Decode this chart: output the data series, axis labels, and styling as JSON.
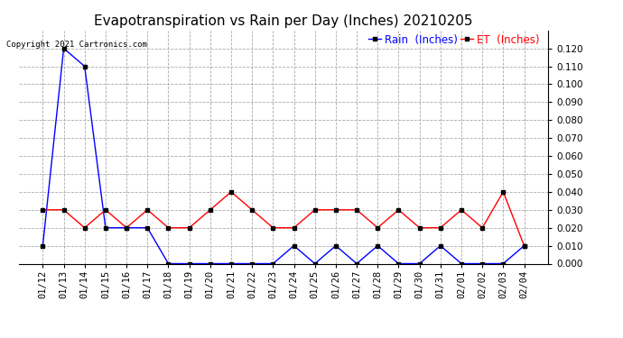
{
  "title": "Evapotranspiration vs Rain per Day (Inches) 20210205",
  "copyright_text": "Copyright 2021 Cartronics.com",
  "legend_rain": "Rain  (Inches)",
  "legend_et": "ET  (Inches)",
  "dates": [
    "01/12",
    "01/13",
    "01/14",
    "01/15",
    "01/16",
    "01/17",
    "01/18",
    "01/19",
    "01/20",
    "01/21",
    "01/22",
    "01/23",
    "01/24",
    "01/25",
    "01/26",
    "01/27",
    "01/28",
    "01/29",
    "01/30",
    "01/31",
    "02/01",
    "02/02",
    "02/03",
    "02/04"
  ],
  "rain": [
    0.01,
    0.12,
    0.11,
    0.02,
    0.02,
    0.02,
    0.0,
    0.0,
    0.0,
    0.0,
    0.0,
    0.0,
    0.01,
    0.0,
    0.01,
    0.0,
    0.01,
    0.0,
    0.0,
    0.01,
    0.0,
    0.0,
    0.0,
    0.01
  ],
  "et": [
    0.03,
    0.03,
    0.02,
    0.03,
    0.02,
    0.03,
    0.02,
    0.02,
    0.03,
    0.04,
    0.03,
    0.02,
    0.02,
    0.03,
    0.03,
    0.03,
    0.02,
    0.03,
    0.02,
    0.02,
    0.03,
    0.02,
    0.04,
    0.01
  ],
  "rain_color": "#0000FF",
  "et_color": "#FF0000",
  "ylim_min": 0.0,
  "ylim_max": 0.13,
  "yticks": [
    0.0,
    0.01,
    0.02,
    0.03,
    0.04,
    0.05,
    0.06,
    0.07,
    0.08,
    0.09,
    0.1,
    0.11,
    0.12
  ],
  "bg_color": "#FFFFFF",
  "grid_color": "#AAAAAA",
  "title_fontsize": 11,
  "tick_fontsize": 7.5,
  "legend_fontsize": 8.5,
  "marker_color": "#000000",
  "marker_size": 3,
  "line_width": 1.0,
  "figwidth": 6.9,
  "figheight": 3.75
}
